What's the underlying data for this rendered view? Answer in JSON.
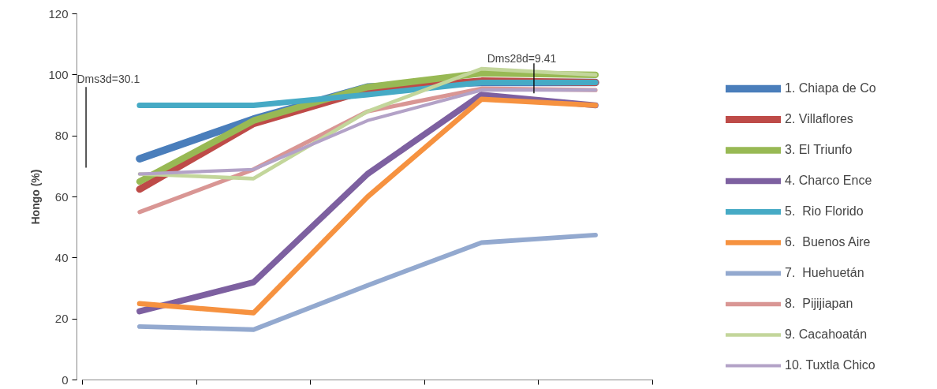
{
  "chart_data": {
    "type": "line",
    "ylabel": "Hongo (%)",
    "categories": [
      null,
      null,
      null,
      null,
      null
    ],
    "ylim": [
      0,
      120
    ],
    "yticks": [
      0,
      20,
      40,
      60,
      80,
      100,
      120
    ],
    "grid": false,
    "legend": "right",
    "line_style": "solid",
    "marker": "none",
    "series": [
      {
        "name": "1. Chiapa de Co",
        "color": "#4a7ebb",
        "values": [
          72.5,
          85.5,
          96,
          97.5,
          97.5
        ]
      },
      {
        "name": "2. Villaflores",
        "color": "#be4b48",
        "values": [
          62.5,
          84,
          95,
          98,
          97.5
        ]
      },
      {
        "name": "3. El Triunfo",
        "color": "#98b954",
        "values": [
          65,
          85,
          96,
          100.5,
          100
        ]
      },
      {
        "name": "4. Charco Ence",
        "color": "#7d60a0",
        "values": [
          22.5,
          32,
          67.5,
          93.5,
          90
        ]
      },
      {
        "name": "5.  Rio Florido",
        "color": "#46aac5",
        "values": [
          90,
          90,
          93.5,
          97.5,
          97.5
        ]
      },
      {
        "name": "6.  Buenos Aire",
        "color": "#f69240",
        "values": [
          25,
          22,
          60,
          92,
          90
        ]
      },
      {
        "name": "7.  Huehuetán",
        "color": "#93a9cf",
        "values": [
          17.5,
          16.5,
          31,
          45,
          47.5
        ]
      },
      {
        "name": "8.  Pijijiapan",
        "color": "#d99694",
        "values": [
          55,
          69,
          88,
          95.5,
          95
        ]
      },
      {
        "name": "9. Cacahoatán",
        "color": "#c3d69b",
        "values": [
          67.5,
          66,
          88,
          102,
          100
        ]
      },
      {
        "name": "10. Tuxtla Chico",
        "color": "#b3a2c7",
        "values": [
          67.5,
          69,
          85,
          95,
          95
        ]
      }
    ],
    "annotations": [
      "Dms3d=30.1",
      "Dms28d=9.41"
    ]
  }
}
